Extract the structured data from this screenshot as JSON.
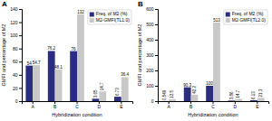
{
  "chart_data": [
    {
      "type": "bar",
      "title": "A",
      "categories": [
        "A",
        "B",
        "C",
        "D",
        "E"
      ],
      "series": [
        {
          "name": "Freq. of M2 (%)",
          "color": "#2b2d7e",
          "values": [
            54,
            76.2,
            76,
            3.65,
            6.73
          ]
        },
        {
          "name": "M2-GMFI(TL1.0)",
          "color": "#c8c8c8",
          "values": [
            54.7,
            48.1,
            132,
            14.7,
            36.4
          ]
        }
      ],
      "xlabel": "Hybridization condition",
      "ylabel": "GMFI and percentage of M2",
      "ylim": [
        0,
        140
      ],
      "yticks": [
        0,
        20,
        40,
        60,
        80,
        100,
        120,
        140
      ],
      "legend": "upper right",
      "data_labels": true
    },
    {
      "type": "bar",
      "title": "B",
      "categories": [
        "A",
        "B",
        "C",
        "D",
        "E"
      ],
      "series": [
        {
          "name": "Freq. of M2 (%)",
          "color": "#2b2d7e",
          "values": [
            0.549,
            90.3,
            100,
            3.86,
            6.13
          ]
        },
        {
          "name": "M2-GMFI(TL2.0)",
          "color": "#c8c8c8",
          "values": [
            12.5,
            42.2,
            513,
            14.7,
            21.3
          ]
        }
      ],
      "xlabel": "Hybridization condition",
      "ylabel": "GMFI and percentage of M2",
      "ylim": [
        0,
        600
      ],
      "yticks": [
        0,
        100,
        200,
        300,
        400,
        500,
        600
      ],
      "legend": "upper right",
      "data_labels": true
    }
  ]
}
